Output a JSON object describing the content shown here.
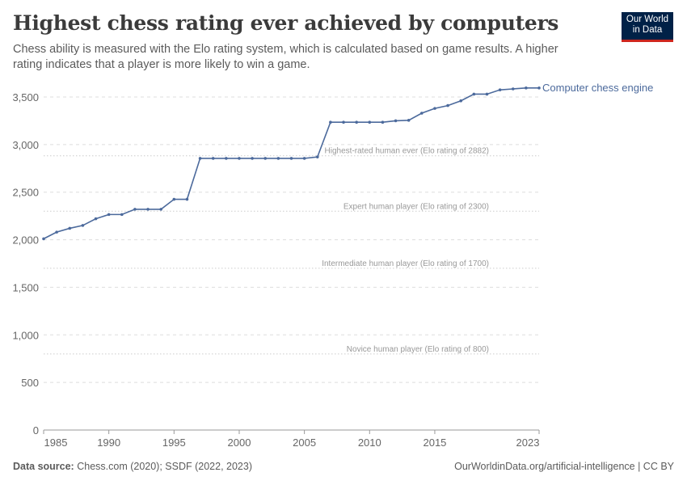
{
  "header": {
    "title": "Highest chess rating ever achieved by computers",
    "subtitle": "Chess ability is measured with the Elo rating system, which is calculated based on game results. A higher rating indicates that a player is more likely to win a game.",
    "logo": "Our World in Data"
  },
  "footer": {
    "source_label": "Data source:",
    "source": "Chess.com (2020); SSDF (2022, 2023)",
    "url": "OurWorldinData.org/artificial-intelligence | CC BY"
  },
  "chart_data": {
    "type": "line",
    "title": "Highest chess rating ever achieved by computers",
    "ylim": [
      0,
      3500
    ],
    "xlim": [
      1985,
      2023
    ],
    "grid": true,
    "y_ticks": [
      0,
      500,
      1000,
      1500,
      2000,
      2500,
      3000,
      3500
    ],
    "y_tick_labels": [
      "0",
      "500",
      "1,000",
      "1,500",
      "2,000",
      "2,500",
      "3,000",
      "3,500"
    ],
    "x_ticks": [
      1985,
      1990,
      1995,
      2000,
      2005,
      2010,
      2015,
      2023
    ],
    "series": [
      {
        "name": "Computer chess engine",
        "color": "#4c6a9c",
        "x": [
          1985,
          1986,
          1987,
          1988,
          1989,
          1990,
          1991,
          1992,
          1993,
          1994,
          1995,
          1996,
          1997,
          1998,
          1999,
          2000,
          2001,
          2002,
          2003,
          2004,
          2005,
          2006,
          2007,
          2008,
          2009,
          2010,
          2011,
          2012,
          2013,
          2014,
          2015,
          2016,
          2017,
          2018,
          2019,
          2020,
          2021,
          2022,
          2023
        ],
        "y": [
          2010,
          2080,
          2120,
          2150,
          2220,
          2265,
          2265,
          2320,
          2320,
          2320,
          2425,
          2425,
          2855,
          2855,
          2855,
          2855,
          2855,
          2855,
          2855,
          2855,
          2855,
          2870,
          3235,
          3235,
          3235,
          3235,
          3235,
          3250,
          3255,
          3330,
          3380,
          3410,
          3460,
          3530,
          3530,
          3575,
          3585,
          3595,
          3595
        ]
      }
    ],
    "reference_lines": [
      {
        "value": 2882,
        "label": "Highest-rated human ever (Elo rating of 2882)"
      },
      {
        "value": 2300,
        "label": "Expert human player (Elo rating of 2300)"
      },
      {
        "value": 1700,
        "label": "Intermediate human player (Elo rating of 1700)"
      },
      {
        "value": 800,
        "label": "Novice human player (Elo rating of 800)"
      }
    ]
  }
}
